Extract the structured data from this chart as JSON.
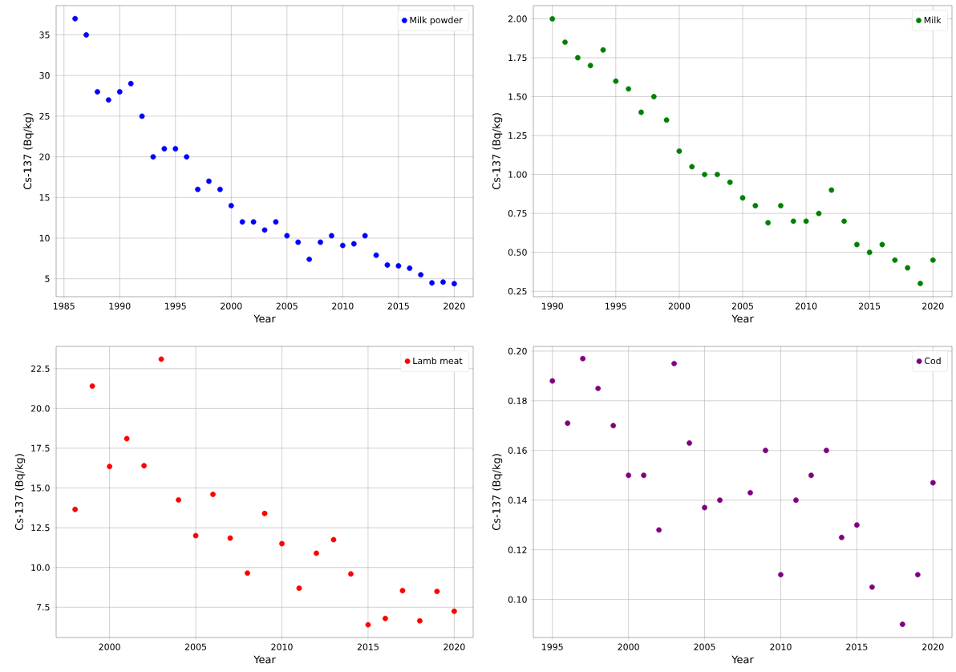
{
  "chart_data": [
    {
      "type": "scatter",
      "xlabel": "Year",
      "ylabel": "Cs-137 (Bq/kg)",
      "x": [
        1986,
        1987,
        1988,
        1989,
        1990,
        1991,
        1992,
        1993,
        1994,
        1995,
        1996,
        1997,
        1998,
        1999,
        2000,
        2001,
        2002,
        2003,
        2004,
        2005,
        2006,
        2007,
        2008,
        2009,
        2010,
        2011,
        2012,
        2013,
        2014,
        2015,
        2016,
        2017,
        2018,
        2019,
        2020
      ],
      "series": [
        {
          "name": "Milk powder",
          "color": "#0000ff",
          "values": [
            37,
            35,
            28,
            27,
            28,
            29,
            25,
            20,
            21,
            21,
            20,
            16,
            17,
            16,
            14,
            12,
            12,
            11,
            12,
            10.3,
            9.5,
            7.4,
            9.5,
            10.3,
            9.1,
            9.3,
            10.3,
            7.9,
            6.7,
            6.6,
            6.3,
            5.5,
            4.5,
            4.6,
            4.4
          ]
        }
      ],
      "xlim": [
        1984.3,
        2021.7
      ],
      "ylim": [
        2.8,
        38.6
      ],
      "xticks": [
        1985,
        1990,
        1995,
        2000,
        2005,
        2010,
        2015,
        2020
      ],
      "yticks": [
        5,
        10,
        15,
        20,
        25,
        30,
        35
      ],
      "grid": true,
      "legend": "top right",
      "marker": "circle"
    },
    {
      "type": "scatter",
      "xlabel": "Year",
      "ylabel": "Cs-137 (Bq/kg)",
      "x": [
        1990,
        1991,
        1992,
        1993,
        1994,
        1995,
        1996,
        1997,
        1998,
        1999,
        2000,
        2001,
        2002,
        2003,
        2004,
        2005,
        2006,
        2007,
        2008,
        2009,
        2010,
        2011,
        2012,
        2013,
        2014,
        2015,
        2016,
        2017,
        2018,
        2019,
        2020
      ],
      "series": [
        {
          "name": "Milk",
          "color": "#008000",
          "values": [
            2.0,
            1.85,
            1.75,
            1.7,
            1.8,
            1.6,
            1.55,
            1.4,
            1.5,
            1.35,
            1.15,
            1.05,
            1.0,
            1.0,
            0.95,
            0.85,
            0.8,
            0.69,
            0.8,
            0.7,
            0.7,
            0.75,
            0.9,
            0.7,
            0.55,
            0.5,
            0.55,
            0.45,
            0.4,
            0.3,
            0.45
          ]
        }
      ],
      "xlim": [
        1988.5,
        2021.5
      ],
      "ylim": [
        0.215,
        2.085
      ],
      "xticks": [
        1990,
        1995,
        2000,
        2005,
        2010,
        2015,
        2020
      ],
      "yticks": [
        0.25,
        {
          "value": 0.5,
          "label": "0.50"
        },
        0.75,
        {
          "value": 1.0,
          "label": "1.00"
        },
        1.25,
        {
          "value": 1.5,
          "label": "1.50"
        },
        1.75,
        {
          "value": 2.0,
          "label": "2.00"
        }
      ],
      "grid": true,
      "legend": "top right",
      "marker": "circle"
    },
    {
      "type": "scatter",
      "xlabel": "Year",
      "ylabel": "Cs-137 (Bq/kg)",
      "x": [
        1998,
        1999,
        2000,
        2001,
        2002,
        2003,
        2004,
        2005,
        2006,
        2007,
        2008,
        2009,
        2010,
        2011,
        2012,
        2013,
        2014,
        2015,
        2016,
        2017,
        2018,
        2019,
        2020
      ],
      "series": [
        {
          "name": "Lamb meat",
          "color": "#ff0000",
          "values": [
            13.65,
            21.4,
            16.35,
            18.1,
            16.4,
            23.1,
            14.25,
            12.0,
            14.6,
            11.85,
            9.65,
            13.4,
            11.5,
            8.7,
            10.9,
            11.75,
            9.6,
            6.4,
            6.8,
            8.55,
            6.65,
            8.5,
            7.25
          ]
        }
      ],
      "xlim": [
        1996.9,
        2021.1
      ],
      "ylim": [
        5.6,
        23.9
      ],
      "xticks": [
        2000,
        2005,
        2010,
        2015,
        2020
      ],
      "yticks": [
        7.5,
        {
          "value": 10,
          "label": "10.0"
        },
        12.5,
        {
          "value": 15,
          "label": "15.0"
        },
        17.5,
        {
          "value": 20,
          "label": "20.0"
        },
        22.5
      ],
      "grid": true,
      "legend": "top right",
      "marker": "circle"
    },
    {
      "type": "scatter",
      "xlabel": "Year",
      "ylabel": "Cs-137 (Bq/kg)",
      "x": [
        1995,
        1996,
        1997,
        1998,
        1999,
        2000,
        2001,
        2002,
        2003,
        2004,
        2005,
        2006,
        2008,
        2009,
        2010,
        2011,
        2012,
        2013,
        2014,
        2015,
        2016,
        2018,
        2019,
        2020
      ],
      "series": [
        {
          "name": "Cod",
          "color": "#800080",
          "values": [
            0.188,
            0.171,
            0.197,
            0.185,
            0.17,
            0.15,
            0.15,
            0.128,
            0.195,
            0.163,
            0.137,
            0.14,
            0.143,
            0.16,
            0.11,
            0.14,
            0.15,
            0.16,
            0.125,
            0.13,
            0.105,
            0.09,
            0.11,
            0.147
          ]
        }
      ],
      "xlim": [
        1993.75,
        2021.25
      ],
      "ylim": [
        0.0847,
        0.2019
      ],
      "xticks": [
        1995,
        2000,
        2005,
        2010,
        2015,
        2020
      ],
      "yticks": [
        {
          "value": 0.1,
          "label": "0.10"
        },
        0.12,
        0.14,
        0.16,
        0.18,
        {
          "value": 0.2,
          "label": "0.20"
        }
      ],
      "grid": true,
      "legend": "top right",
      "marker": "circle"
    }
  ]
}
